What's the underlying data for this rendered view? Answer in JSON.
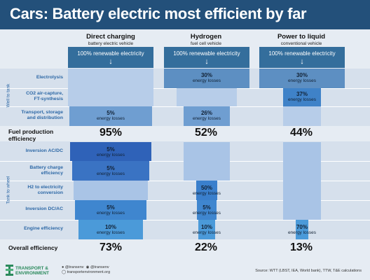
{
  "title": "Cars: Battery electric most efficient by far",
  "columns": [
    {
      "title": "Direct charging",
      "subtitle": "battery electric vehicle",
      "source": "100% renewable electricity",
      "production_efficiency": "95%",
      "overall_efficiency": "73%"
    },
    {
      "title": "Hydrogen",
      "subtitle": "fuel cell vehicle",
      "source": "100% renewable electricity",
      "production_efficiency": "52%",
      "overall_efficiency": "22%"
    },
    {
      "title": "Power to liquid",
      "subtitle": "conventional vehicle",
      "source": "100% renewable electricity",
      "production_efficiency": "44%",
      "overall_efficiency": "13%"
    }
  ],
  "section_labels": {
    "well_to_tank": "Well to tank",
    "tank_to_wheel": "Tank to wheel"
  },
  "wtt_rows": [
    "Electrolysis",
    "CO2 air-capture, FT-synthesis",
    "Transport, storage and distribution"
  ],
  "ttw_rows": [
    "Inversion AC/DC",
    "Battery charge efficiency",
    "H2 to electricity conversion",
    "Inversion DC/AC",
    "Engine efficiency"
  ],
  "loss_word": "energy losses",
  "losses": {
    "bev": {
      "transport": "5%",
      "inversion_acdc": "5%",
      "battery_charge": "5%",
      "inversion_dcac": "5%",
      "engine": "10%"
    },
    "fcev": {
      "electrolysis": "30%",
      "transport": "26%",
      "h2_conversion": "50%",
      "inversion_dcac": "5%",
      "engine": "10%"
    },
    "ptl": {
      "electrolysis": "30%",
      "co2_capture": "37%",
      "engine": "70%"
    }
  },
  "fuel_production_label": "Fuel production efficiency",
  "overall_label": "Overall efficiency",
  "footer": {
    "brand_line1": "TRANSPORT &",
    "brand_line2": "ENVIRONMENT",
    "twitter1": "@transenv",
    "twitter2": "@transenv",
    "website": "transportenvironment.org",
    "source": "Source: WTT (LBST, IEA, World bank), TTW, T&E calculations"
  },
  "colors": {
    "header": "#23507a",
    "source_box": "#346e9c",
    "bar_light": "#a9c4e6",
    "bar_medium": "#5c92cc",
    "bar_dark": "#3478c4",
    "bar_deep": "#2f62b8",
    "accent_text": "#2d68a6",
    "brand_green": "#2b8a5c"
  }
}
